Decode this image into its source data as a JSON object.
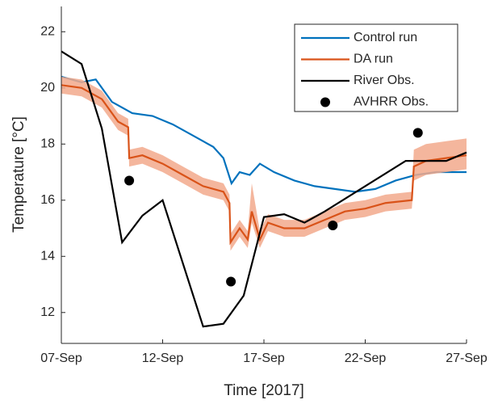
{
  "chart_data": {
    "type": "line",
    "xlabel": "Time [2017]",
    "ylabel": "Temperature [°C]",
    "xlim": [
      7,
      27
    ],
    "ylim": [
      10.9,
      22.9
    ],
    "xticks": [
      {
        "value": 7,
        "label": "07-Sep"
      },
      {
        "value": 12,
        "label": "12-Sep"
      },
      {
        "value": 17,
        "label": "17-Sep"
      },
      {
        "value": 22,
        "label": "22-Sep"
      },
      {
        "value": 27,
        "label": "27-Sep"
      }
    ],
    "yticks": [
      12,
      14,
      16,
      18,
      20,
      22
    ],
    "legend": "upper-right",
    "series": [
      {
        "name": "Control run",
        "color": "#0072bd",
        "style": "line",
        "x": [
          7,
          8,
          8.7,
          9.5,
          10.5,
          11.5,
          12.5,
          13.5,
          14.5,
          15,
          15.4,
          15.8,
          16.3,
          16.8,
          17.5,
          18.5,
          19.5,
          20.5,
          21.5,
          22.5,
          23.5,
          24.5,
          25.5,
          27
        ],
        "values": [
          20.4,
          20.2,
          20.3,
          19.5,
          19.1,
          19.0,
          18.7,
          18.3,
          17.9,
          17.5,
          16.6,
          17.0,
          16.9,
          17.3,
          17.0,
          16.7,
          16.5,
          16.4,
          16.3,
          16.4,
          16.7,
          16.9,
          17.0,
          17.0
        ]
      },
      {
        "name": "DA run",
        "color": "#d95319",
        "band_color": "#f2a98c",
        "style": "line",
        "x": [
          7,
          8,
          9,
          9.8,
          10.3,
          10.35,
          11,
          12,
          13,
          14,
          15,
          15.3,
          15.35,
          15.8,
          16.2,
          16.4,
          16.8,
          17.2,
          18,
          19,
          20,
          21,
          22,
          23,
          24.3,
          24.4,
          25,
          26,
          27
        ],
        "values": [
          20.1,
          20.0,
          19.6,
          18.8,
          18.6,
          17.5,
          17.6,
          17.3,
          16.9,
          16.5,
          16.3,
          15.9,
          14.5,
          15.0,
          14.6,
          15.6,
          14.6,
          15.2,
          15.0,
          15.0,
          15.3,
          15.6,
          15.7,
          15.9,
          16.0,
          17.2,
          17.4,
          17.5,
          17.6
        ],
        "lower": [
          19.8,
          19.7,
          19.3,
          18.5,
          18.3,
          17.2,
          17.3,
          17.0,
          16.6,
          16.2,
          16.0,
          15.6,
          14.2,
          14.7,
          14.3,
          15.2,
          14.3,
          14.9,
          14.7,
          14.7,
          15.0,
          15.3,
          15.4,
          15.6,
          15.7,
          16.7,
          16.9,
          17.0,
          17.1
        ],
        "upper": [
          20.4,
          20.3,
          19.9,
          19.1,
          18.9,
          17.8,
          17.9,
          17.6,
          17.2,
          16.8,
          16.6,
          16.2,
          14.8,
          15.3,
          14.9,
          16.6,
          14.9,
          15.5,
          15.3,
          15.3,
          15.6,
          15.9,
          16.0,
          16.2,
          16.3,
          17.8,
          18.0,
          18.1,
          18.2
        ]
      },
      {
        "name": "River Obs.",
        "color": "#000000",
        "style": "line",
        "x": [
          7,
          8,
          9,
          10,
          11,
          12,
          14,
          15,
          16,
          17,
          18,
          19,
          20,
          24,
          25,
          26,
          27
        ],
        "values": [
          21.3,
          20.85,
          18.55,
          14.5,
          15.45,
          16.0,
          11.5,
          11.6,
          12.6,
          15.4,
          15.5,
          15.2,
          15.6,
          17.4,
          17.4,
          17.4,
          17.7
        ]
      },
      {
        "name": "AVHRR Obs.",
        "color": "#000000",
        "style": "marker",
        "x": [
          10.35,
          15.37,
          20.4,
          24.6
        ],
        "values": [
          16.7,
          13.1,
          15.1,
          18.4
        ]
      }
    ]
  }
}
